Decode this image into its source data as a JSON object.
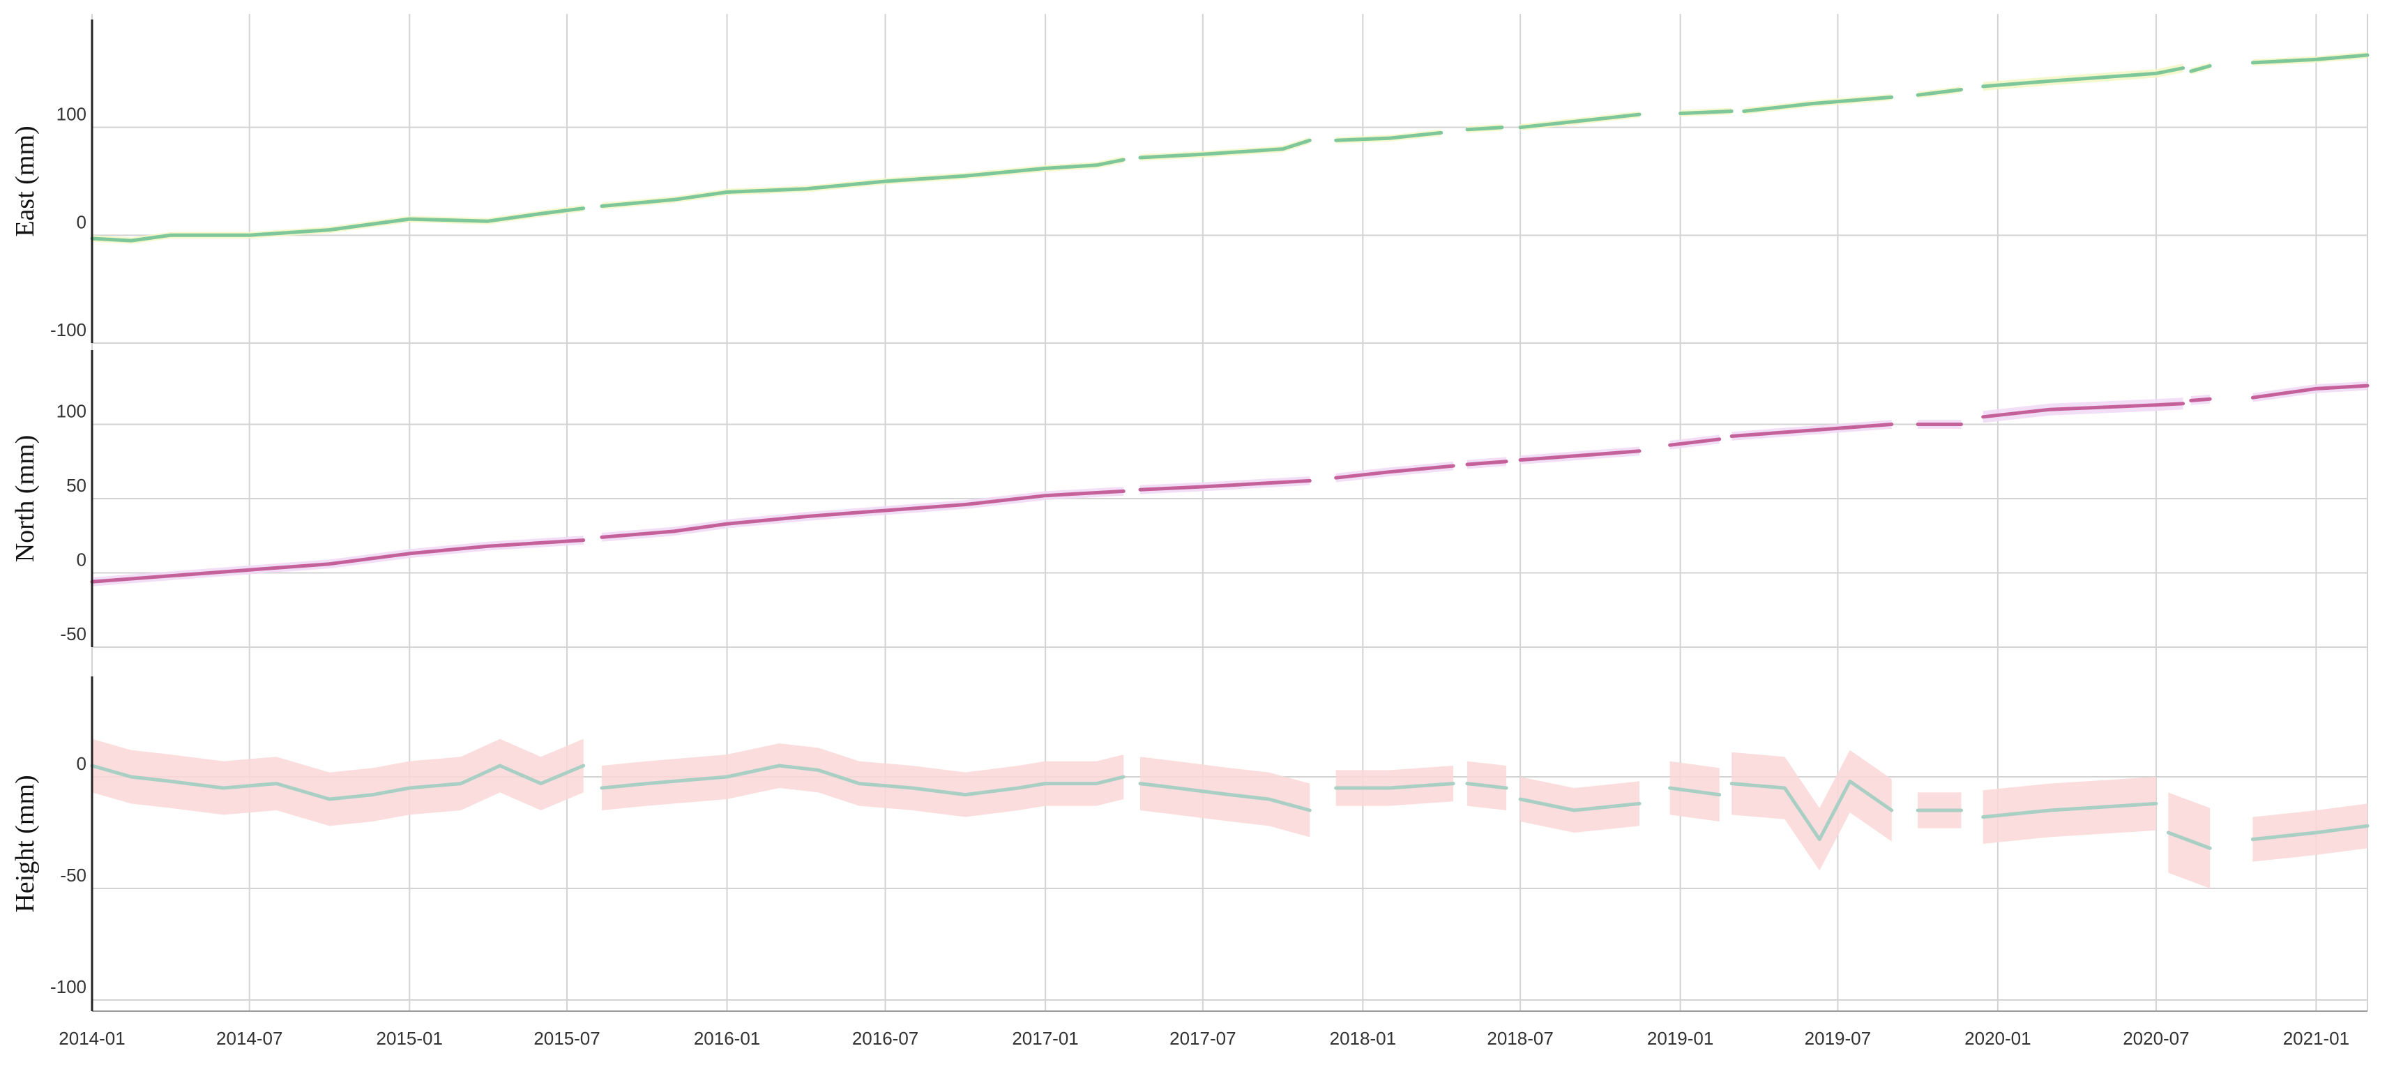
{
  "chart_data": {
    "type": "line",
    "x_ticks": [
      "2014-01",
      "2014-07",
      "2015-01",
      "2015-07",
      "2016-01",
      "2016-07",
      "2017-01",
      "2017-07",
      "2018-01",
      "2018-07",
      "2019-01",
      "2019-07",
      "2020-01",
      "2020-07",
      "2021-01"
    ],
    "xlim": [
      "2014-01-01",
      "2021-03-01"
    ],
    "grid": true,
    "panels": [
      {
        "ylabel": "East (mm)",
        "ylim": [
          -100,
          200
        ],
        "yticks": [
          100,
          0,
          -100
        ],
        "line_color": "#7dc79b",
        "band_color": "#f2f7c2",
        "series": [
          {
            "x": [
              "2014-01-01",
              "2014-02-15",
              "2014-04-01",
              "2014-07-01",
              "2014-10-01",
              "2015-01-01",
              "2015-04-01",
              "2015-06-01",
              "2015-07-20"
            ],
            "y": [
              -3,
              -5,
              0,
              0,
              5,
              15,
              13,
              20,
              25
            ],
            "band": 3
          },
          {
            "x": [
              "2015-08-10",
              "2015-11-01",
              "2016-01-01",
              "2016-04-01",
              "2016-07-01",
              "2016-10-01",
              "2017-01-01",
              "2017-03-01",
              "2017-04-01"
            ],
            "y": [
              27,
              33,
              40,
              43,
              50,
              55,
              62,
              65,
              70
            ],
            "band": 3
          },
          {
            "x": [
              "2017-04-20",
              "2017-07-01",
              "2017-10-01",
              "2017-11-01"
            ],
            "y": [
              72,
              75,
              80,
              88
            ],
            "band": 3
          },
          {
            "x": [
              "2017-12-01",
              "2018-02-01",
              "2018-04-01"
            ],
            "y": [
              88,
              90,
              95
            ],
            "band": 3
          },
          {
            "x": [
              "2018-05-01",
              "2018-06-10"
            ],
            "y": [
              98,
              100
            ],
            "band": 3
          },
          {
            "x": [
              "2018-07-01",
              "2018-10-01",
              "2018-11-15"
            ],
            "y": [
              100,
              108,
              112
            ],
            "band": 3
          },
          {
            "x": [
              "2019-01-01",
              "2019-03-01"
            ],
            "y": [
              113,
              115
            ],
            "band": 3
          },
          {
            "x": [
              "2019-03-15",
              "2019-06-01",
              "2019-09-01"
            ],
            "y": [
              115,
              122,
              128
            ],
            "band": 3
          },
          {
            "x": [
              "2019-10-01",
              "2019-11-20"
            ],
            "y": [
              130,
              135
            ],
            "band": 3
          },
          {
            "x": [
              "2019-12-15",
              "2020-03-01",
              "2020-07-01",
              "2020-08-01"
            ],
            "y": [
              138,
              143,
              150,
              155
            ],
            "band": 4
          },
          {
            "x": [
              "2020-08-10",
              "2020-09-01"
            ],
            "y": [
              152,
              157
            ],
            "band": 3
          },
          {
            "x": [
              "2020-10-20",
              "2021-01-01",
              "2021-03-01"
            ],
            "y": [
              160,
              163,
              167
            ],
            "band": 3
          }
        ]
      },
      {
        "ylabel": "North (mm)",
        "ylim": [
          -50,
          150
        ],
        "yticks": [
          100,
          50,
          0,
          -50
        ],
        "line_color": "#c5619a",
        "band_color": "#f0d8f5",
        "series": [
          {
            "x": [
              "2014-01-01",
              "2014-04-01",
              "2014-07-01",
              "2014-10-01",
              "2015-01-01",
              "2015-04-01",
              "2015-07-20"
            ],
            "y": [
              -6,
              -2,
              2,
              6,
              13,
              18,
              22
            ],
            "band": 3
          },
          {
            "x": [
              "2015-08-10",
              "2015-11-01",
              "2016-01-01",
              "2016-04-01",
              "2016-07-01",
              "2016-10-01",
              "2017-01-01",
              "2017-04-01"
            ],
            "y": [
              24,
              28,
              33,
              38,
              42,
              46,
              52,
              55
            ],
            "band": 3
          },
          {
            "x": [
              "2017-04-20",
              "2017-07-01",
              "2017-11-01"
            ],
            "y": [
              56,
              58,
              62
            ],
            "band": 3
          },
          {
            "x": [
              "2017-12-01",
              "2018-02-01",
              "2018-04-15"
            ],
            "y": [
              64,
              68,
              72
            ],
            "band": 3
          },
          {
            "x": [
              "2018-05-01",
              "2018-06-15"
            ],
            "y": [
              73,
              75
            ],
            "band": 3
          },
          {
            "x": [
              "2018-07-01",
              "2018-10-01",
              "2018-11-15"
            ],
            "y": [
              76,
              80,
              82
            ],
            "band": 3
          },
          {
            "x": [
              "2018-12-20",
              "2019-02-15"
            ],
            "y": [
              86,
              90
            ],
            "band": 3
          },
          {
            "x": [
              "2019-03-01",
              "2019-06-01",
              "2019-09-01"
            ],
            "y": [
              92,
              96,
              100
            ],
            "band": 3
          },
          {
            "x": [
              "2019-10-01",
              "2019-11-20"
            ],
            "y": [
              100,
              100
            ],
            "band": 3
          },
          {
            "x": [
              "2019-12-15",
              "2020-03-01",
              "2020-07-01",
              "2020-08-01"
            ],
            "y": [
              105,
              110,
              113,
              114
            ],
            "band": 4
          },
          {
            "x": [
              "2020-08-10",
              "2020-09-01"
            ],
            "y": [
              116,
              117
            ],
            "band": 3
          },
          {
            "x": [
              "2020-10-20",
              "2021-01-01",
              "2021-03-01"
            ],
            "y": [
              118,
              124,
              126
            ],
            "band": 3
          }
        ]
      },
      {
        "ylabel": "Height (mm)",
        "ylim": [
          -105,
          45
        ],
        "yticks": [
          0,
          -50,
          -100
        ],
        "line_color": "#a9cfc4",
        "band_color": "#fad7d7",
        "series": [
          {
            "x": [
              "2014-01-01",
              "2014-02-15",
              "2014-04-01",
              "2014-06-01",
              "2014-08-01",
              "2014-10-01",
              "2014-11-20",
              "2015-01-01",
              "2015-03-01",
              "2015-04-15",
              "2015-06-01",
              "2015-07-20"
            ],
            "y": [
              5,
              0,
              -2,
              -5,
              -3,
              -10,
              -8,
              -5,
              -3,
              5,
              -3,
              5
            ],
            "band": 12
          },
          {
            "x": [
              "2015-08-10",
              "2015-10-01",
              "2016-01-01",
              "2016-03-01",
              "2016-04-15",
              "2016-06-01",
              "2016-08-01",
              "2016-10-01",
              "2016-12-01",
              "2017-01-01",
              "2017-03-01",
              "2017-04-01"
            ],
            "y": [
              -5,
              -3,
              0,
              5,
              3,
              -3,
              -5,
              -8,
              -5,
              -3,
              -3,
              0
            ],
            "band": 10
          },
          {
            "x": [
              "2017-04-20",
              "2017-06-01",
              "2017-08-01",
              "2017-09-15",
              "2017-11-01"
            ],
            "y": [
              -3,
              -5,
              -8,
              -10,
              -15
            ],
            "band": 12
          },
          {
            "x": [
              "2017-12-01",
              "2018-02-01",
              "2018-04-15"
            ],
            "y": [
              -5,
              -5,
              -3
            ],
            "band": 8
          },
          {
            "x": [
              "2018-05-01",
              "2018-06-15"
            ],
            "y": [
              -3,
              -5
            ],
            "band": 10
          },
          {
            "x": [
              "2018-07-01",
              "2018-09-01",
              "2018-11-15"
            ],
            "y": [
              -10,
              -15,
              -12
            ],
            "band": 10
          },
          {
            "x": [
              "2018-12-20",
              "2019-02-15"
            ],
            "y": [
              -5,
              -8
            ],
            "band": 12
          },
          {
            "x": [
              "2019-03-01",
              "2019-05-01",
              "2019-06-10",
              "2019-07-15",
              "2019-09-01"
            ],
            "y": [
              -3,
              -5,
              -28,
              -2,
              -15
            ],
            "band": 14
          },
          {
            "x": [
              "2019-10-01",
              "2019-11-20"
            ],
            "y": [
              -15,
              -15
            ],
            "band": 8
          },
          {
            "x": [
              "2019-12-15",
              "2020-03-01",
              "2020-07-01"
            ],
            "y": [
              -18,
              -15,
              -12
            ],
            "band": 12
          },
          {
            "x": [
              "2020-07-15",
              "2020-09-01"
            ],
            "y": [
              -25,
              -32
            ],
            "band": 18
          },
          {
            "x": [
              "2020-10-20",
              "2021-01-01",
              "2021-03-01"
            ],
            "y": [
              -28,
              -25,
              -22
            ],
            "band": 10
          }
        ]
      }
    ]
  }
}
